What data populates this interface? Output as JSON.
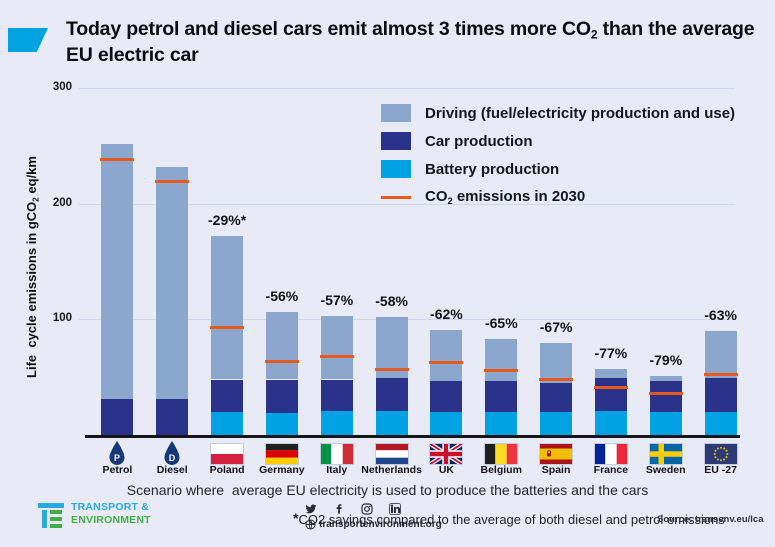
{
  "title": {
    "pre": "Today petrol and diesel cars emit almost 3 times more CO",
    "sub": "2",
    "post": " than the average EU electric car"
  },
  "y_axis": {
    "label_pre": "Life  cycle emissions in gCO",
    "label_sub": "2",
    "label_post": " eq/km"
  },
  "legend": {
    "driving": "Driving (fuel/electricity production and use)",
    "car": "Car production",
    "battery": "Battery production",
    "co2_pre": "CO",
    "co2_sub": "2",
    "co2_post": " emissions in 2030"
  },
  "colors": {
    "accent": "#00a3e2",
    "driving": "#8ca7ce",
    "car": "#2a3389",
    "battery": "#00a2e3",
    "line2030": "#e85a1c",
    "grid": "#d2d7e7",
    "background": "#e8ebf6"
  },
  "chart_data": {
    "type": "bar",
    "stacked": true,
    "title": "Today petrol and diesel cars emit almost 3 times more CO2 than the average EU electric car",
    "ylabel": "Life cycle emissions in gCO2 eq/km",
    "ylim": [
      0,
      300
    ],
    "yticks": [
      100,
      200,
      300
    ],
    "grid": true,
    "legend_position": "top-right",
    "categories": [
      "Petrol",
      "Diesel",
      "Poland",
      "Germany",
      "Italy",
      "Netherlands",
      "UK",
      "Belgium",
      "Spain",
      "France",
      "Sweden",
      "EU -27"
    ],
    "flags": [
      "petrol",
      "diesel",
      "pl",
      "de",
      "it",
      "nl",
      "uk",
      "be",
      "es",
      "fr",
      "se",
      "eu"
    ],
    "series": [
      {
        "name": "Battery production",
        "color": "#00a2e3",
        "values": [
          0,
          0,
          20,
          19,
          21,
          21,
          20,
          20,
          20,
          21,
          20,
          20
        ]
      },
      {
        "name": "Car production",
        "color": "#2a3389",
        "values": [
          31,
          31,
          28,
          29,
          27,
          28,
          27,
          27,
          25,
          28,
          27,
          29
        ]
      },
      {
        "name": "Driving (fuel/electricity production and use)",
        "color": "#8ca7ce",
        "values": [
          221,
          201,
          124,
          58,
          55,
          53,
          44,
          36,
          35,
          8,
          4,
          41
        ]
      }
    ],
    "line_2030": {
      "name": "CO2 emissions in 2030",
      "color": "#e85a1c",
      "values": [
        238,
        219,
        93,
        64,
        68,
        57,
        63,
        56,
        48,
        41,
        36,
        52
      ]
    },
    "bar_labels": [
      "",
      "",
      "-29%*",
      "-56%",
      "-57%",
      "-58%",
      "-62%",
      "-65%",
      "-67%",
      "-77%",
      "-79%",
      "-63%"
    ]
  },
  "caption": "Scenario where  average EU electricity is used to produce the batteries and the cars",
  "footnote": {
    "star": "*",
    "text": "CO2 savings compared to the average of both diesel and petrol emissions"
  },
  "source": "Source: transenv.eu/lca",
  "footer": {
    "logo_line1": "TRANSPORT &",
    "logo_line2": "ENVIRONMENT",
    "website": "transportenvironment.org",
    "website_prefix": "@"
  }
}
